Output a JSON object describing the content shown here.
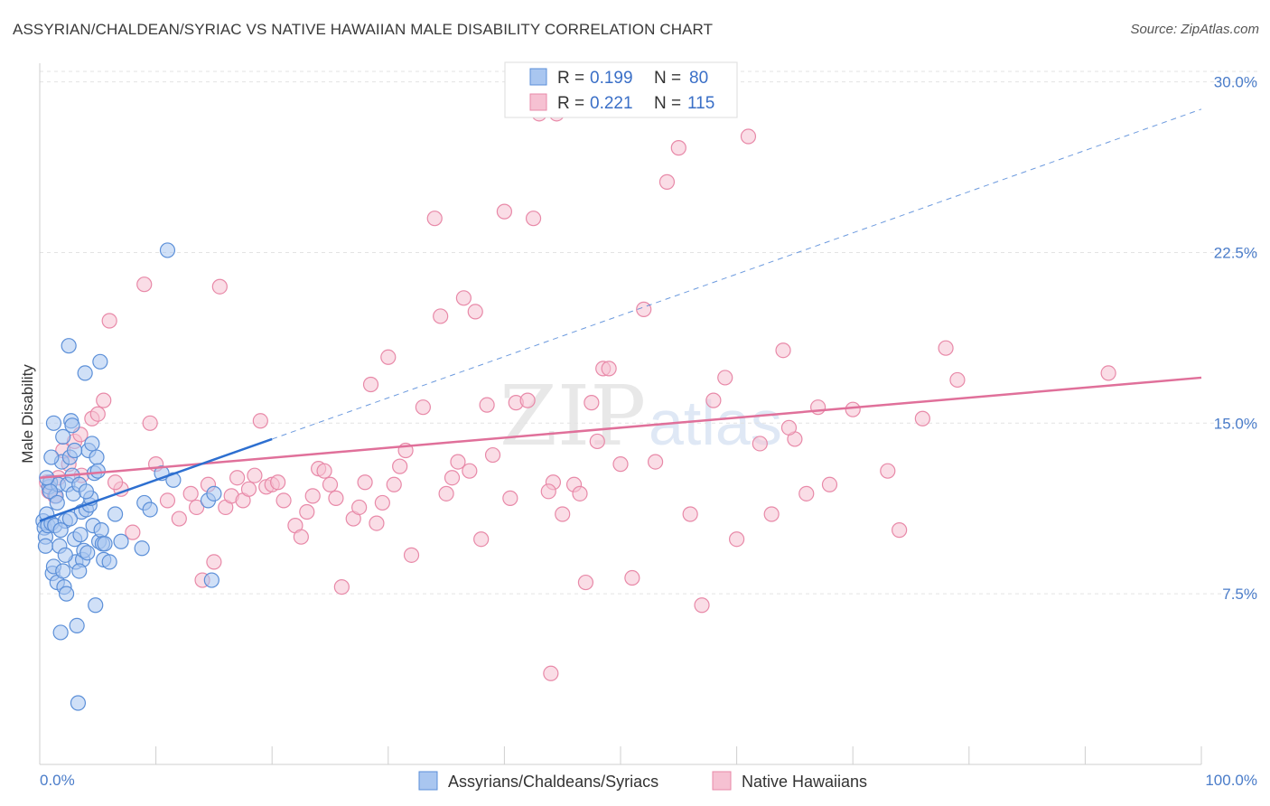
{
  "title": "ASSYRIAN/CHALDEAN/SYRIAC VS NATIVE HAWAIIAN MALE DISABILITY CORRELATION CHART",
  "source": "Source: ZipAtlas.com",
  "watermark": {
    "zip": "ZIP",
    "atlas": "atlas"
  },
  "legend": {
    "r_label": "R =",
    "n_label": "N =",
    "series1": {
      "r": "0.199",
      "n": "80"
    },
    "series2": {
      "r": "0.221",
      "n": "115"
    }
  },
  "colors": {
    "blue_fill": "#a9c6f0",
    "blue_stroke": "#5b8fd8",
    "blue_line": "#2d6fd0",
    "pink_fill": "#f6c1d2",
    "pink_stroke": "#e889a8",
    "pink_line": "#e0709a",
    "grid": "#e3e3e3",
    "tick_text": "#4a7cc9"
  },
  "chart_data": {
    "type": "scatter",
    "title": "ASSYRIAN/CHALDEAN/SYRIAC VS NATIVE HAWAIIAN MALE DISABILITY CORRELATION CHART",
    "xlabel": "",
    "ylabel": "Male Disability",
    "xlim": [
      0,
      100
    ],
    "ylim": [
      0,
      30.5
    ],
    "x_tick_labels": [
      "0.0%",
      "100.0%"
    ],
    "y_ticks": [
      7.5,
      15.0,
      22.5,
      30.0
    ],
    "y_tick_labels": [
      "7.5%",
      "15.0%",
      "22.5%",
      "30.0%"
    ],
    "grid": true,
    "legend_position": "top-center",
    "series": [
      {
        "name": "Assyrians/Chaldeans/Syriacs",
        "color": "blue",
        "trend": {
          "x": [
            0,
            20
          ],
          "y": [
            10.7,
            14.3
          ]
        },
        "trend_extension": {
          "x": [
            20,
            100
          ],
          "y": [
            14.3,
            28.8
          ]
        },
        "points": [
          [
            0.3,
            10.7
          ],
          [
            0.4,
            10.4
          ],
          [
            0.5,
            10.0
          ],
          [
            0.5,
            9.6
          ],
          [
            0.6,
            11.0
          ],
          [
            0.7,
            10.5
          ],
          [
            0.8,
            12.2
          ],
          [
            0.9,
            12.4
          ],
          [
            1.0,
            10.6
          ],
          [
            1.1,
            8.4
          ],
          [
            1.2,
            15.0
          ],
          [
            1.3,
            10.5
          ],
          [
            1.4,
            11.8
          ],
          [
            1.5,
            8.0
          ],
          [
            1.6,
            12.3
          ],
          [
            1.7,
            9.6
          ],
          [
            1.8,
            5.8
          ],
          [
            1.9,
            13.3
          ],
          [
            2.0,
            14.4
          ],
          [
            2.1,
            7.8
          ],
          [
            2.2,
            10.7
          ],
          [
            2.3,
            7.5
          ],
          [
            2.4,
            12.3
          ],
          [
            2.5,
            18.4
          ],
          [
            2.6,
            13.5
          ],
          [
            2.7,
            15.1
          ],
          [
            2.8,
            12.7
          ],
          [
            2.9,
            11.9
          ],
          [
            3.0,
            9.9
          ],
          [
            3.1,
            8.9
          ],
          [
            3.2,
            6.1
          ],
          [
            3.3,
            2.7
          ],
          [
            3.4,
            12.3
          ],
          [
            3.5,
            10.1
          ],
          [
            3.6,
            11.1
          ],
          [
            3.7,
            9.0
          ],
          [
            3.8,
            9.4
          ],
          [
            3.9,
            17.2
          ],
          [
            4.0,
            11.2
          ],
          [
            4.1,
            9.3
          ],
          [
            4.2,
            13.8
          ],
          [
            4.3,
            11.4
          ],
          [
            4.4,
            11.7
          ],
          [
            4.5,
            14.1
          ],
          [
            4.6,
            10.5
          ],
          [
            4.7,
            12.8
          ],
          [
            4.8,
            7.0
          ],
          [
            4.9,
            13.5
          ],
          [
            5.0,
            12.9
          ],
          [
            5.1,
            9.8
          ],
          [
            5.2,
            17.7
          ],
          [
            5.3,
            10.3
          ],
          [
            5.4,
            9.7
          ],
          [
            5.5,
            9.0
          ],
          [
            5.6,
            9.7
          ],
          [
            6.0,
            8.9
          ],
          [
            6.5,
            11.0
          ],
          [
            7.0,
            9.8
          ],
          [
            8.8,
            9.5
          ],
          [
            9.0,
            11.5
          ],
          [
            9.5,
            11.2
          ],
          [
            10.5,
            12.8
          ],
          [
            11.0,
            22.6
          ],
          [
            11.5,
            12.5
          ],
          [
            14.5,
            11.6
          ],
          [
            14.8,
            8.1
          ],
          [
            15.0,
            11.9
          ],
          [
            1.0,
            13.5
          ],
          [
            1.2,
            8.7
          ],
          [
            2.0,
            8.5
          ],
          [
            2.8,
            14.9
          ],
          [
            0.9,
            12.0
          ],
          [
            1.5,
            11.5
          ],
          [
            2.2,
            9.2
          ],
          [
            0.6,
            12.6
          ],
          [
            1.8,
            10.3
          ],
          [
            2.6,
            10.8
          ],
          [
            3.4,
            8.5
          ],
          [
            4.0,
            12.0
          ],
          [
            3.0,
            13.8
          ]
        ]
      },
      {
        "name": "Native Hawaiians",
        "color": "pink",
        "trend": {
          "x": [
            0,
            100
          ],
          "y": [
            12.6,
            17.0
          ]
        },
        "points": [
          [
            0.6,
            12.4
          ],
          [
            0.8,
            12.0
          ],
          [
            1.3,
            11.8
          ],
          [
            1.6,
            12.6
          ],
          [
            2.0,
            13.8
          ],
          [
            2.5,
            13.2
          ],
          [
            3.0,
            14.2
          ],
          [
            3.5,
            14.5
          ],
          [
            4.5,
            15.2
          ],
          [
            5.0,
            15.4
          ],
          [
            5.5,
            16.0
          ],
          [
            6.0,
            19.5
          ],
          [
            7.0,
            12.1
          ],
          [
            8.0,
            10.2
          ],
          [
            9.0,
            21.1
          ],
          [
            9.5,
            15.0
          ],
          [
            10.0,
            13.2
          ],
          [
            11.0,
            11.6
          ],
          [
            12.0,
            10.8
          ],
          [
            13.0,
            11.9
          ],
          [
            13.5,
            11.3
          ],
          [
            14.0,
            8.1
          ],
          [
            14.5,
            12.3
          ],
          [
            15.0,
            8.9
          ],
          [
            15.5,
            21.0
          ],
          [
            16.0,
            11.3
          ],
          [
            16.5,
            11.8
          ],
          [
            17.0,
            12.6
          ],
          [
            17.5,
            11.6
          ],
          [
            18.0,
            12.1
          ],
          [
            19.0,
            15.1
          ],
          [
            19.5,
            12.2
          ],
          [
            20.0,
            12.3
          ],
          [
            20.5,
            12.4
          ],
          [
            21.0,
            11.6
          ],
          [
            22.0,
            10.5
          ],
          [
            22.5,
            10.0
          ],
          [
            23.0,
            11.1
          ],
          [
            23.5,
            11.8
          ],
          [
            24.0,
            13.0
          ],
          [
            24.5,
            12.9
          ],
          [
            25.0,
            12.3
          ],
          [
            25.5,
            11.7
          ],
          [
            26.0,
            7.8
          ],
          [
            27.0,
            10.8
          ],
          [
            27.5,
            11.3
          ],
          [
            28.0,
            12.4
          ],
          [
            28.5,
            16.7
          ],
          [
            29.0,
            10.6
          ],
          [
            29.5,
            11.5
          ],
          [
            30.0,
            17.9
          ],
          [
            30.5,
            12.3
          ],
          [
            31.0,
            13.1
          ],
          [
            31.5,
            13.8
          ],
          [
            32.0,
            9.2
          ],
          [
            33.0,
            15.7
          ],
          [
            34.0,
            24.0
          ],
          [
            34.5,
            19.7
          ],
          [
            35.0,
            11.9
          ],
          [
            36.0,
            13.3
          ],
          [
            36.5,
            20.5
          ],
          [
            37.0,
            12.9
          ],
          [
            37.5,
            19.9
          ],
          [
            38.0,
            9.9
          ],
          [
            38.5,
            15.8
          ],
          [
            39.0,
            13.6
          ],
          [
            40.0,
            24.3
          ],
          [
            40.5,
            11.7
          ],
          [
            41.0,
            15.9
          ],
          [
            42.0,
            16.0
          ],
          [
            42.5,
            24.0
          ],
          [
            43.0,
            28.6
          ],
          [
            44.0,
            4.0
          ],
          [
            44.5,
            28.6
          ],
          [
            45.0,
            11.0
          ],
          [
            46.0,
            12.3
          ],
          [
            46.5,
            11.9
          ],
          [
            47.0,
            8.0
          ],
          [
            47.5,
            15.9
          ],
          [
            48.0,
            14.2
          ],
          [
            48.5,
            17.4
          ],
          [
            49.0,
            17.4
          ],
          [
            50.0,
            13.2
          ],
          [
            51.0,
            8.2
          ],
          [
            52.0,
            20.0
          ],
          [
            53.0,
            13.3
          ],
          [
            54.0,
            25.6
          ],
          [
            55.0,
            27.1
          ],
          [
            56.0,
            11.0
          ],
          [
            57.0,
            7.0
          ],
          [
            58.0,
            16.0
          ],
          [
            59.0,
            17.0
          ],
          [
            60.0,
            9.9
          ],
          [
            61.0,
            27.6
          ],
          [
            62.0,
            14.1
          ],
          [
            63.0,
            11.0
          ],
          [
            64.0,
            18.2
          ],
          [
            65.0,
            14.3
          ],
          [
            66.0,
            11.9
          ],
          [
            67.0,
            15.7
          ],
          [
            68.0,
            12.3
          ],
          [
            70.0,
            15.6
          ],
          [
            73.0,
            12.9
          ],
          [
            74.0,
            10.3
          ],
          [
            76.0,
            15.2
          ],
          [
            78.0,
            18.3
          ],
          [
            79.0,
            16.9
          ],
          [
            92.0,
            17.2
          ],
          [
            3.6,
            12.7
          ],
          [
            6.5,
            12.4
          ],
          [
            18.5,
            12.7
          ],
          [
            35.5,
            12.6
          ],
          [
            44.2,
            12.4
          ],
          [
            43.8,
            12.0
          ],
          [
            64.5,
            14.8
          ]
        ]
      }
    ]
  }
}
